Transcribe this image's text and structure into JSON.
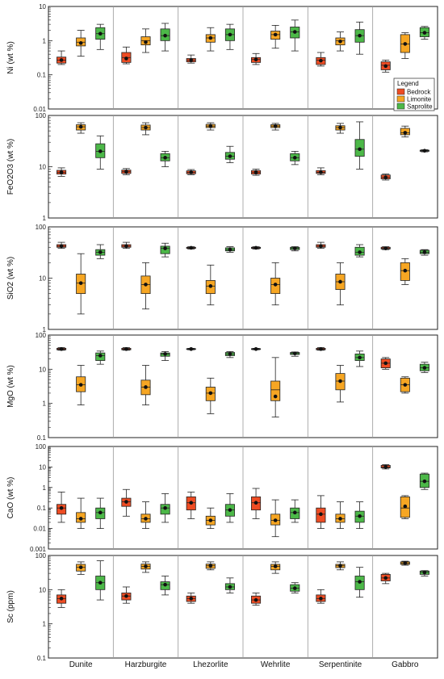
{
  "legend": {
    "title": "Legend",
    "items": [
      {
        "name": "Bedrock",
        "color": "#ee4c23"
      },
      {
        "name": "Limonite",
        "color": "#f6a623"
      },
      {
        "name": "Saprolite",
        "color": "#4cb848"
      }
    ]
  },
  "categories": [
    "Dunite",
    "Harzburgite",
    "Lhezorlite",
    "Wehrlite",
    "Serpentinite",
    "Gabbro"
  ],
  "chart_data": [
    {
      "type": "box",
      "ylabel": "Ni (wt %)",
      "scale": "log",
      "ylim": [
        0.01,
        10
      ],
      "ticks": [
        "10",
        "1",
        "0.1",
        "0.01"
      ],
      "tick_values": [
        10,
        1,
        0.1,
        0.01
      ],
      "series": [
        {
          "name": "Bedrock",
          "boxes": [
            [
              0.2,
              0.22,
              0.27,
              0.33,
              0.5,
              0.27
            ],
            [
              0.21,
              0.23,
              0.32,
              0.45,
              0.65,
              0.3
            ],
            [
              0.22,
              0.24,
              0.27,
              0.3,
              0.38,
              0.27
            ],
            [
              0.2,
              0.23,
              0.28,
              0.32,
              0.42,
              0.28
            ],
            [
              0.18,
              0.2,
              0.27,
              0.32,
              0.45,
              0.26
            ],
            [
              0.12,
              0.14,
              0.19,
              0.24,
              0.27,
              0.18
            ]
          ]
        },
        {
          "name": "Limonite",
          "boxes": [
            [
              0.35,
              0.7,
              0.9,
              1.2,
              2.0,
              0.85
            ],
            [
              0.45,
              0.75,
              1.0,
              1.3,
              2.2,
              0.9
            ],
            [
              0.5,
              0.9,
              1.2,
              1.5,
              2.4,
              1.2
            ],
            [
              0.6,
              1.1,
              1.5,
              1.9,
              2.8,
              1.5
            ],
            [
              0.5,
              0.75,
              1.0,
              1.2,
              1.8,
              0.95
            ],
            [
              0.3,
              0.45,
              0.8,
              1.5,
              1.7,
              0.8
            ]
          ]
        },
        {
          "name": "Saprolite",
          "boxes": [
            [
              0.55,
              1.1,
              1.6,
              2.4,
              3.0,
              1.6
            ],
            [
              0.5,
              1.0,
              1.4,
              2.2,
              3.2,
              1.4
            ],
            [
              0.55,
              1.0,
              1.5,
              2.2,
              3.0,
              1.5
            ],
            [
              0.5,
              1.2,
              1.8,
              2.5,
              4.0,
              1.8
            ],
            [
              0.4,
              0.9,
              1.4,
              2.1,
              3.5,
              1.4
            ],
            [
              1.1,
              1.3,
              1.7,
              2.4,
              2.6,
              1.7
            ]
          ]
        }
      ]
    },
    {
      "type": "box",
      "ylabel": "FeO2O3 (wt %)",
      "scale": "log",
      "ylim": [
        1,
        100
      ],
      "ticks": [
        "100",
        "10",
        "1"
      ],
      "tick_values": [
        100,
        10,
        1
      ],
      "series": [
        {
          "name": "Bedrock",
          "boxes": [
            [
              6.5,
              7.2,
              7.8,
              8.5,
              9.5,
              7.8
            ],
            [
              7.0,
              7.4,
              8.0,
              8.6,
              9.2,
              8.0
            ],
            [
              7.0,
              7.3,
              7.8,
              8.3,
              8.8,
              7.8
            ],
            [
              6.8,
              7.2,
              7.8,
              8.4,
              9.0,
              7.8
            ],
            [
              7.0,
              7.4,
              7.8,
              8.4,
              9.5,
              7.8
            ],
            [
              5.5,
              5.8,
              6.2,
              6.9,
              7.2,
              6.2
            ]
          ]
        },
        {
          "name": "Limonite",
          "boxes": [
            [
              45,
              52,
              60,
              66,
              72,
              60
            ],
            [
              42,
              52,
              58,
              65,
              72,
              58
            ],
            [
              52,
              58,
              62,
              67,
              72,
              62
            ],
            [
              52,
              58,
              62,
              66,
              70,
              62
            ],
            [
              45,
              52,
              58,
              63,
              70,
              58
            ],
            [
              38,
              42,
              46,
              56,
              62,
              46
            ]
          ]
        },
        {
          "name": "Saprolite",
          "boxes": [
            [
              9,
              15,
              20,
              28,
              40,
              20
            ],
            [
              10,
              13,
              15,
              18,
              20,
              15
            ],
            [
              12,
              14,
              16,
              19,
              25,
              16
            ],
            [
              11,
              13,
              15,
              18,
              20,
              15
            ],
            [
              9,
              16,
              22,
              34,
              75,
              22
            ],
            [
              19.5,
              20,
              20.5,
              21,
              21.5,
              20.5
            ]
          ]
        }
      ]
    },
    {
      "type": "box",
      "ylabel": "SiO2 (wt %)",
      "scale": "log",
      "ylim": [
        1,
        100
      ],
      "ticks": [
        "100",
        "10",
        "1"
      ],
      "tick_values": [
        100,
        10,
        1
      ],
      "series": [
        {
          "name": "Bedrock",
          "boxes": [
            [
              38,
              40,
              42,
              45,
              50,
              42
            ],
            [
              38,
              40,
              42,
              45,
              50,
              42
            ],
            [
              37,
              38,
              39,
              40,
              41,
              39
            ],
            [
              37,
              38,
              39,
              40,
              41,
              39
            ],
            [
              38,
              40,
              42,
              45,
              50,
              42
            ],
            [
              36,
              37,
              38,
              40,
              41,
              38
            ]
          ]
        },
        {
          "name": "Limonite",
          "boxes": [
            [
              2,
              5,
              8,
              12,
              30,
              8
            ],
            [
              2.5,
              5,
              7.5,
              11,
              20,
              7.5
            ],
            [
              3,
              5,
              7,
              9,
              18,
              7
            ],
            [
              3,
              5,
              7.5,
              10,
              20,
              7.5
            ],
            [
              3,
              6,
              8.5,
              12,
              20,
              8.5
            ],
            [
              7.5,
              9,
              14,
              20,
              24,
              14
            ]
          ]
        },
        {
          "name": "Saprolite",
          "boxes": [
            [
              24,
              28,
              32,
              36,
              45,
              32
            ],
            [
              26,
              30,
              38,
              42,
              48,
              38
            ],
            [
              32,
              34,
              36,
              39,
              41,
              36
            ],
            [
              34,
              36,
              38,
              40,
              41,
              38
            ],
            [
              26,
              28,
              32,
              40,
              45,
              32
            ],
            [
              28,
              30,
              32,
              35,
              36,
              32
            ]
          ]
        }
      ]
    },
    {
      "type": "box",
      "ylabel": "MgO (wt %)",
      "scale": "log",
      "ylim": [
        0.1,
        100
      ],
      "ticks": [
        "100",
        "10",
        "1",
        "0.1"
      ],
      "tick_values": [
        100,
        10,
        1,
        0.1
      ],
      "series": [
        {
          "name": "Bedrock",
          "boxes": [
            [
              36,
              37,
              39,
              41,
              43,
              39
            ],
            [
              36,
              37,
              39,
              41,
              43,
              39
            ],
            [
              37,
              38,
              39,
              40,
              41,
              39
            ],
            [
              37,
              38,
              39,
              40,
              41,
              39
            ],
            [
              36,
              37,
              39,
              41,
              43,
              39
            ],
            [
              10,
              11,
              15,
              20,
              22,
              15
            ]
          ]
        },
        {
          "name": "Limonite",
          "boxes": [
            [
              0.9,
              2.2,
              3.5,
              6.0,
              13,
              3.5
            ],
            [
              0.9,
              1.8,
              3.0,
              4.8,
              13,
              3.0
            ],
            [
              0.5,
              1.2,
              2.0,
              3.0,
              5.5,
              2.0
            ],
            [
              0.4,
              1.2,
              2.5,
              4.5,
              22,
              1.6
            ],
            [
              1.1,
              2.5,
              4.5,
              7.5,
              13,
              4.5
            ],
            [
              2.0,
              2.2,
              3.5,
              5.5,
              6.0,
              3.5
            ]
          ]
        },
        {
          "name": "Saprolite",
          "boxes": [
            [
              14,
              18,
              25,
              30,
              34,
              25
            ],
            [
              18,
              24,
              28,
              30,
              33,
              28
            ],
            [
              22,
              25,
              28,
              31,
              33,
              28
            ],
            [
              24,
              27,
              29,
              31,
              32,
              29
            ],
            [
              12,
              18,
              22,
              28,
              34,
              22
            ],
            [
              8,
              9,
              11,
              14,
              16,
              11
            ]
          ]
        }
      ]
    },
    {
      "type": "box",
      "ylabel": "CaO (wt %)",
      "scale": "log",
      "ylim": [
        0.001,
        100
      ],
      "ticks": [
        "100",
        "10",
        "1",
        "0.1",
        "0.01",
        "0.001"
      ],
      "tick_values": [
        100,
        10,
        1,
        0.1,
        0.01,
        0.001
      ],
      "series": [
        {
          "name": "Bedrock",
          "boxes": [
            [
              0.02,
              0.05,
              0.1,
              0.15,
              0.6,
              0.1
            ],
            [
              0.04,
              0.12,
              0.2,
              0.3,
              0.8,
              0.2
            ],
            [
              0.03,
              0.08,
              0.18,
              0.35,
              0.6,
              0.18
            ],
            [
              0.03,
              0.08,
              0.18,
              0.35,
              0.9,
              0.18
            ],
            [
              0.01,
              0.02,
              0.05,
              0.1,
              0.4,
              0.05
            ],
            [
              8,
              9,
              10,
              12,
              13,
              10
            ]
          ]
        },
        {
          "name": "Limonite",
          "boxes": [
            [
              0.01,
              0.02,
              0.03,
              0.06,
              0.3,
              0.03
            ],
            [
              0.01,
              0.02,
              0.03,
              0.05,
              0.2,
              0.03
            ],
            [
              0.01,
              0.015,
              0.025,
              0.04,
              0.1,
              0.025
            ],
            [
              0.004,
              0.015,
              0.025,
              0.05,
              0.25,
              0.025
            ],
            [
              0.01,
              0.02,
              0.03,
              0.05,
              0.2,
              0.03
            ],
            [
              0.03,
              0.035,
              0.1,
              0.35,
              0.4,
              0.12
            ]
          ]
        },
        {
          "name": "Saprolite",
          "boxes": [
            [
              0.01,
              0.03,
              0.06,
              0.1,
              0.3,
              0.06
            ],
            [
              0.02,
              0.05,
              0.1,
              0.15,
              0.5,
              0.1
            ],
            [
              0.02,
              0.04,
              0.08,
              0.15,
              0.5,
              0.08
            ],
            [
              0.02,
              0.03,
              0.06,
              0.1,
              0.25,
              0.06
            ],
            [
              0.01,
              0.02,
              0.04,
              0.07,
              0.2,
              0.04
            ],
            [
              0.8,
              1.0,
              2.0,
              4.5,
              5.0,
              2.0
            ]
          ]
        }
      ]
    },
    {
      "type": "box",
      "ylabel": "Sc (ppm)",
      "scale": "log",
      "ylim": [
        0.1,
        100
      ],
      "ticks": [
        "100",
        "10",
        "1",
        "0.1"
      ],
      "tick_values": [
        100,
        10,
        1,
        0.1
      ],
      "series": [
        {
          "name": "Bedrock",
          "boxes": [
            [
              3,
              4,
              5.5,
              7,
              10,
              5.5
            ],
            [
              4,
              5,
              6.5,
              8,
              12,
              6.5
            ],
            [
              4,
              4.5,
              5.5,
              6.5,
              8,
              5.5
            ],
            [
              3.5,
              4,
              5,
              6.5,
              8,
              5
            ],
            [
              4,
              4.5,
              5.5,
              7,
              10,
              5.5
            ],
            [
              15,
              18,
              22,
              28,
              30,
              22
            ]
          ]
        },
        {
          "name": "Limonite",
          "boxes": [
            [
              28,
              35,
              45,
              55,
              65,
              45
            ],
            [
              32,
              40,
              48,
              56,
              65,
              48
            ],
            [
              38,
              42,
              50,
              56,
              65,
              50
            ],
            [
              30,
              38,
              48,
              55,
              65,
              48
            ],
            [
              38,
              44,
              50,
              55,
              65,
              50
            ],
            [
              52,
              55,
              60,
              65,
              68,
              60
            ]
          ]
        },
        {
          "name": "Saprolite",
          "boxes": [
            [
              5,
              10,
              16,
              25,
              70,
              16
            ],
            [
              7,
              10,
              14,
              17,
              25,
              14
            ],
            [
              8,
              10,
              12,
              15,
              22,
              12
            ],
            [
              8,
              9,
              11,
              14,
              16,
              11
            ],
            [
              6,
              10,
              17,
              25,
              45,
              17
            ],
            [
              25,
              28,
              32,
              35,
              36,
              32
            ]
          ]
        }
      ]
    }
  ]
}
